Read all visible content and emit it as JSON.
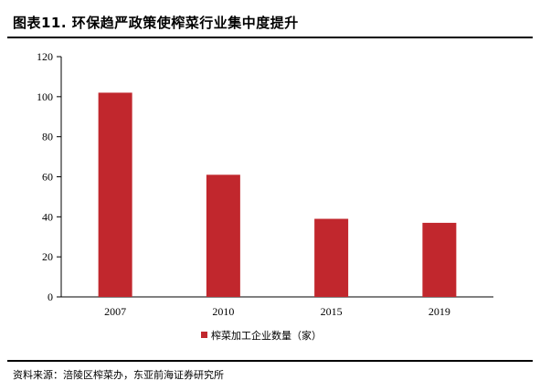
{
  "figure": {
    "title": "图表11. 环保趋严政策使榨菜行业集中度提升",
    "source": "资料来源：涪陵区榨菜办，东亚前海证券研究所"
  },
  "chart_data": {
    "type": "bar",
    "categories": [
      "2007",
      "2010",
      "2015",
      "2019"
    ],
    "series": [
      {
        "name": "榨菜加工企业数量（家）",
        "values": [
          102,
          61,
          39,
          37
        ],
        "color": "#C1272D"
      }
    ],
    "title": "",
    "xlabel": "",
    "ylabel": "",
    "ylim": [
      0,
      120
    ],
    "yticks": [
      0,
      20,
      40,
      60,
      80,
      100,
      120
    ],
    "grid": false,
    "legend_position": "bottom-center"
  }
}
